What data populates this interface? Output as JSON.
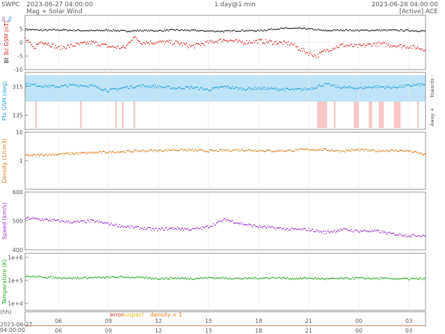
{
  "header": {
    "brand": "SWPC",
    "start_time": "2023-06-27 04:00:00",
    "subtitle": "Mag + Solar Wind",
    "span": "1 day@1 min",
    "end_time": "2023-06-28 04:00:00",
    "source_status": "[Active] ACE"
  },
  "legend_bottom": {
    "error": "error",
    "suspect": "suspect",
    "density_note": "density < 1"
  },
  "axis_bottom": {
    "hh_label": "(hh)",
    "date": "2023-06-27",
    "time": "04:00:00"
  },
  "colors": {
    "bt": "#222222",
    "bz": "#d62728",
    "phi": "#1f9fd6",
    "phi_towards_band": "#bfe3f7",
    "phi_away_band": "#f6c6c6",
    "density": "#e07b1a",
    "speed": "#9933cc",
    "temperature": "#22a822",
    "error": "#cc3333",
    "suspect": "#ddbb00",
    "density_note": "#e07b1a"
  },
  "chart_data": {
    "type": "scatter",
    "x_ticks": [
      "06",
      "09",
      "12",
      "15",
      "18",
      "21",
      "00",
      "03"
    ],
    "x_tick_hours": [
      6,
      9,
      12,
      15,
      18,
      21,
      24,
      27
    ],
    "x_range_hours": [
      4,
      28
    ],
    "panels": [
      {
        "id": "mag",
        "ylabel_parts": [
          "Bt",
          "Bz GSM (nT)",
          "Bx",
          "By"
        ],
        "yticks": [
          "5",
          "0",
          "-5",
          "-10"
        ],
        "ytick_values": [
          5,
          0,
          -5,
          -10
        ],
        "ylim": [
          -10,
          10
        ],
        "series": [
          {
            "name": "Bt",
            "x": [
              4,
              5,
              6,
              7,
              8,
              9,
              10,
              11,
              12,
              13,
              14,
              15,
              16,
              17,
              18,
              19,
              20,
              21,
              22,
              23,
              24,
              25,
              26,
              27,
              28
            ],
            "values": [
              4.8,
              4.5,
              4.6,
              4.5,
              4.3,
              4.5,
              4.2,
              4.4,
              4.3,
              4.6,
              4.4,
              4.2,
              4.1,
              4.4,
              4.3,
              5.0,
              5.2,
              5.0,
              4.3,
              4.6,
              4.4,
              4.5,
              4.5,
              4.4,
              4.2
            ]
          },
          {
            "name": "Bz GSM",
            "x": [
              4,
              4.5,
              5,
              6,
              7,
              8,
              9,
              10,
              10.5,
              11,
              12,
              13,
              14,
              15,
              16,
              17,
              18,
              19,
              20,
              20.5,
              21,
              21.5,
              22,
              23,
              24,
              25,
              26,
              27,
              28
            ],
            "values": [
              1.5,
              -2,
              0.5,
              -2,
              -1,
              0,
              -1.5,
              -2,
              2,
              0,
              0,
              0,
              -1.5,
              0,
              1,
              0,
              0.5,
              0,
              -0.5,
              -2.5,
              -4,
              -5,
              -3,
              -1,
              -1.5,
              -0.5,
              -1,
              -1.5,
              -2.5
            ]
          }
        ]
      },
      {
        "id": "phi",
        "ylabel": "Phi GSM (deg)",
        "yticks": [
          "315",
          "135"
        ],
        "ytick_values": [
          315,
          135
        ],
        "ylim": [
          45,
          405
        ],
        "right_labels": [
          "Towards -",
          "Away +"
        ],
        "series": [
          {
            "name": "Phi GSM",
            "x": [
              4,
              5,
              6,
              7,
              8,
              9,
              10,
              11,
              12,
              13,
              14,
              15,
              16,
              17,
              18,
              19,
              20,
              21,
              22,
              23,
              24,
              25,
              26,
              27,
              28
            ],
            "values": [
              330,
              320,
              315,
              325,
              320,
              290,
              310,
              320,
              315,
              305,
              310,
              295,
              315,
              300,
              305,
              300,
              295,
              300,
              330,
              310,
              305,
              315,
              310,
              320,
              330
            ]
          }
        ]
      },
      {
        "id": "density",
        "ylabel": "Density (1/cm3)",
        "yticks": [
          "10",
          "1"
        ],
        "ytick_values": [
          10,
          1
        ],
        "scale": "log",
        "ylim": [
          0.1,
          10
        ],
        "series": [
          {
            "name": "Density",
            "x": [
              4,
              5,
              6,
              7,
              8,
              9,
              10,
              11,
              12,
              13,
              14,
              15,
              16,
              17,
              18,
              19,
              20,
              21,
              22,
              23,
              24,
              25,
              26,
              27,
              28
            ],
            "values": [
              1.5,
              1.6,
              1.7,
              1.8,
              1.9,
              2.0,
              2.1,
              2.2,
              2.3,
              2.4,
              2.3,
              2.2,
              2.3,
              2.4,
              2.3,
              2.2,
              2.3,
              2.5,
              2.4,
              2.2,
              2.4,
              2.2,
              2.3,
              2.2,
              1.6
            ]
          }
        ]
      },
      {
        "id": "speed",
        "ylabel": "Speed (km/s)",
        "yticks": [
          "600",
          "500",
          "400"
        ],
        "ytick_values": [
          600,
          500,
          400
        ],
        "ylim": [
          400,
          600
        ],
        "series": [
          {
            "name": "Speed",
            "x": [
              4,
              5,
              6,
              7,
              8,
              9,
              10,
              11,
              12,
              13,
              14,
              15,
              16,
              17,
              18,
              19,
              20,
              21,
              22,
              23,
              24,
              25,
              26,
              27,
              28
            ],
            "values": [
              510,
              505,
              500,
              495,
              500,
              490,
              480,
              475,
              470,
              475,
              470,
              480,
              505,
              490,
              480,
              475,
              470,
              470,
              460,
              470,
              465,
              465,
              455,
              450,
              450
            ]
          }
        ]
      },
      {
        "id": "temperature",
        "ylabel": "Temperature (K)",
        "yticks": [
          "1e+6",
          "1e+5",
          "1e+4"
        ],
        "ytick_values": [
          1000000,
          100000,
          10000
        ],
        "scale": "log",
        "ylim": [
          5000,
          1500000
        ],
        "series": [
          {
            "name": "Temperature",
            "x": [
              4,
              5,
              6,
              7,
              8,
              9,
              10,
              11,
              12,
              13,
              14,
              15,
              16,
              17,
              18,
              19,
              20,
              21,
              22,
              23,
              24,
              25,
              26,
              27,
              28
            ],
            "values": [
              150000,
              140000,
              130000,
              125000,
              130000,
              135000,
              140000,
              130000,
              120000,
              125000,
              120000,
              130000,
              125000,
              120000,
              125000,
              130000,
              120000,
              125000,
              115000,
              120000,
              125000,
              120000,
              120000,
              115000,
              118000
            ]
          }
        ]
      }
    ]
  }
}
